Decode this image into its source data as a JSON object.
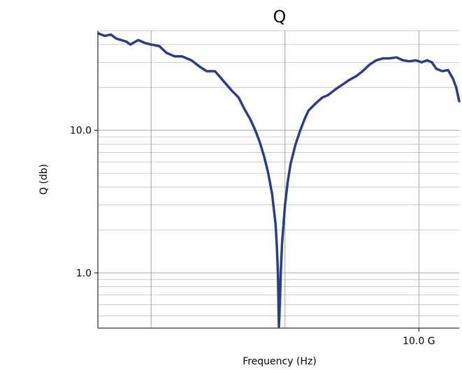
{
  "chart_data": {
    "type": "line",
    "title": "Q",
    "xlabel": "Frequency (Hz)",
    "ylabel": "Q (db)",
    "x_scale": "log",
    "y_scale": "log",
    "xlim": [
      40000000,
      20000000000
    ],
    "ylim": [
      0.41,
      50
    ],
    "grid": true,
    "x_ticks": [
      {
        "value": 10000000000,
        "label": "10.0 G"
      }
    ],
    "y_ticks": [
      {
        "value": 1,
        "label": "1.0"
      },
      {
        "value": 10,
        "label": "10.0"
      }
    ],
    "series": [
      {
        "color": "#2a3d85",
        "x": [
          40000000,
          45000000,
          50000000,
          55000000,
          60000000,
          65000000,
          70000000,
          80000000,
          90000000,
          100000000,
          115000000,
          130000000,
          150000000,
          170000000,
          200000000,
          230000000,
          260000000,
          300000000,
          350000000,
          400000000,
          450000000,
          500000000,
          550000000,
          600000000,
          650000000,
          700000000,
          750000000,
          800000000,
          850000000,
          870000000,
          885000000,
          900000000,
          915000000,
          930000000,
          950000000,
          1000000000,
          1050000000,
          1100000000,
          1200000000,
          1300000000,
          1400000000,
          1500000000,
          1700000000,
          1900000000,
          2100000000,
          2400000000,
          2700000000,
          3000000000,
          3400000000,
          3800000000,
          4300000000,
          4800000000,
          5400000000,
          6000000000,
          6800000000,
          7600000000,
          8500000000,
          9500000000,
          10500000000,
          11500000000,
          12500000000,
          13500000000,
          15000000000,
          16500000000,
          18000000000,
          19000000000,
          20000000000
        ],
        "y": [
          48,
          46,
          47,
          44,
          43,
          42,
          40,
          43,
          41,
          40,
          39,
          35,
          33,
          33,
          31,
          28,
          26,
          26,
          22,
          19,
          17,
          14,
          12,
          10,
          8.2,
          6.5,
          5,
          3.6,
          2.2,
          1.5,
          1,
          0.42,
          0.6,
          1,
          1.6,
          3,
          4.4,
          5.8,
          8,
          10,
          12,
          13.8,
          15.5,
          17,
          17.7,
          19.5,
          21,
          22.5,
          24,
          26,
          29,
          31,
          32,
          32,
          32.5,
          31,
          30.5,
          31,
          30,
          31,
          30,
          27,
          26,
          26.5,
          23,
          20,
          16
        ]
      }
    ]
  }
}
